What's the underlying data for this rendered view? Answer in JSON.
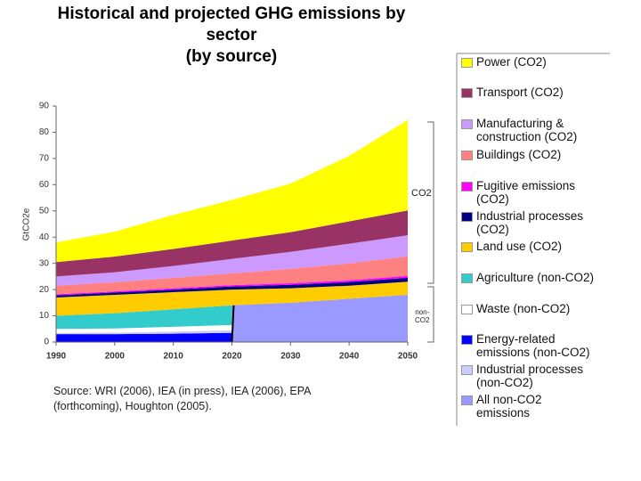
{
  "chart_data": {
    "type": "stacked_area",
    "title": "Historical and projected GHG emissions by sector\n(by source)",
    "y_label": "GtCO2e",
    "x": [
      1990,
      2000,
      2010,
      2020,
      2030,
      2040,
      2050
    ],
    "xlim": [
      1990,
      2050
    ],
    "xticks": [
      1990,
      2000,
      2010,
      2020,
      2030,
      2040,
      2050
    ],
    "ylim": [
      0,
      90
    ],
    "yticks": [
      0,
      10,
      20,
      30,
      40,
      50,
      60,
      70,
      80,
      90
    ],
    "annotations": [
      "CO2",
      "non-\nCO2"
    ],
    "source": "Source: WRI (2006), IEA (in press), IEA (2006), EPA\n(forthcoming), Houghton (2005).",
    "series": [
      {
        "name": "Power (CO2)",
        "color": "#ffff00",
        "values": [
          7.5,
          9.5,
          13,
          15.5,
          18.5,
          25,
          34.5
        ]
      },
      {
        "name": "Transport (CO2)",
        "color": "#993366",
        "values": [
          5.5,
          6,
          6.5,
          7,
          7.5,
          8.5,
          9.5
        ]
      },
      {
        "name": "Manufacturing &\nconstruction (CO2)",
        "color": "#cc99ff",
        "values": [
          3.5,
          3.8,
          4.5,
          5.5,
          6.5,
          7.5,
          8
        ]
      },
      {
        "name": "Buildings (CO2)",
        "color": "#ff8080",
        "values": [
          3.3,
          3.5,
          4,
          4.5,
          5.5,
          6.5,
          7.5
        ]
      },
      {
        "name": "Fugitive emissions\n(CO2)",
        "color": "#ff00ff",
        "values": [
          0.4,
          0.4,
          0.5,
          0.5,
          0.6,
          0.6,
          0.7
        ]
      },
      {
        "name": "Industrial processes\n(CO2)",
        "color": "#000080",
        "values": [
          0.8,
          0.9,
          1,
          1.2,
          1.3,
          1.4,
          1.5
        ]
      },
      {
        "name": "Land use (CO2)",
        "color": "#ffcc00",
        "values": [
          7,
          7,
          6.5,
          6,
          5.5,
          5,
          5
        ]
      },
      {
        "name": "Agriculture (non-CO2)",
        "color": "#33cccc",
        "values": [
          5,
          5.8,
          6.7,
          7.5,
          null,
          null,
          null
        ]
      },
      {
        "name": "Waste (non-CO2)",
        "color": "#ffffff",
        "values": [
          1.5,
          1.6,
          1.8,
          2,
          null,
          null,
          null
        ]
      },
      {
        "name": "Energy-related\nemissions (non-CO2)",
        "color": "#0000ff",
        "values": [
          3,
          3,
          3.2,
          3.5,
          null,
          null,
          null
        ]
      },
      {
        "name": "Industrial processes\n(non-CO2)",
        "color": "#ccccff",
        "values": [
          0.5,
          0.6,
          0.8,
          1,
          null,
          null,
          null
        ]
      },
      {
        "name": "All non-CO2\nemissions",
        "color": "#9999ff",
        "values": [
          null,
          null,
          null,
          14,
          15,
          16.5,
          18
        ]
      }
    ]
  }
}
